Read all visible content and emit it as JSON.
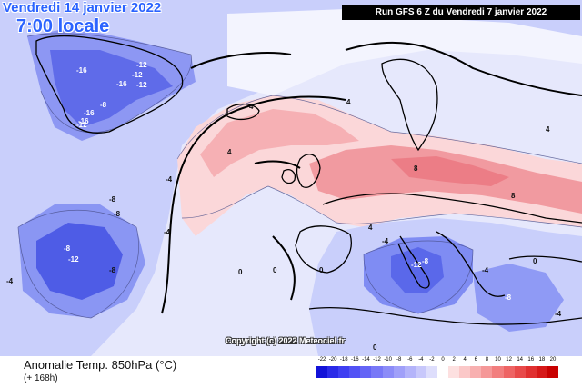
{
  "header": {
    "date_line_1": "Vendredi 14 janvier 2022",
    "date_line_2": "7:00 locale",
    "run_info": "Run GFS 6 Z du Vendredi 7 janvier 2022",
    "copyright": "Copyright (c) 2022 Meteociel.fr"
  },
  "legend": {
    "title": "Anomalie Temp. 850hPa (°C)",
    "subtitle": "(+ 168h)",
    "ticks": [
      "-22",
      "-20",
      "-18",
      "-16",
      "-14",
      "-12",
      "-10",
      "-8",
      "-6",
      "-4",
      "-2",
      "0",
      "2",
      "4",
      "6",
      "8",
      "10",
      "12",
      "14",
      "16",
      "18",
      "20"
    ],
    "colors": [
      "#1212d8",
      "#2a2ae8",
      "#3e3ef2",
      "#5252f5",
      "#6464f6",
      "#7878f7",
      "#8c8cf8",
      "#a0a0f9",
      "#b4b4fa",
      "#c8c8fb",
      "#dedefc",
      "#ffffff",
      "#fde0e0",
      "#fbc8c8",
      "#f8b0b0",
      "#f59898",
      "#f27e7e",
      "#ee6464",
      "#e84a4a",
      "#e03030",
      "#d61818",
      "#c80000"
    ]
  },
  "map_labels": {
    "contours": [
      "-16",
      "-12",
      "-16",
      "-12",
      "-16",
      "-12",
      "-16",
      "-12",
      "-8",
      "-8",
      "-4",
      "-8",
      "-4",
      "-8",
      "-12",
      "-8",
      "-4",
      "4",
      "4",
      "4",
      "8",
      "4",
      "8",
      "0",
      "0",
      "0",
      "0",
      "-4",
      "-8",
      "-12",
      "-4",
      "-8",
      "-4",
      "0",
      "4"
    ]
  },
  "colors": {
    "cold_strong": "#3a4ee6",
    "cold_mid": "#7f8cf3",
    "cold_light": "#c6cdfb",
    "warm_light": "#fbd8d8",
    "warm_mid": "#f6a9a9",
    "warm_strong": "#ee7f86",
    "coastline": "#000000",
    "title_blue": "#2b63ff"
  }
}
